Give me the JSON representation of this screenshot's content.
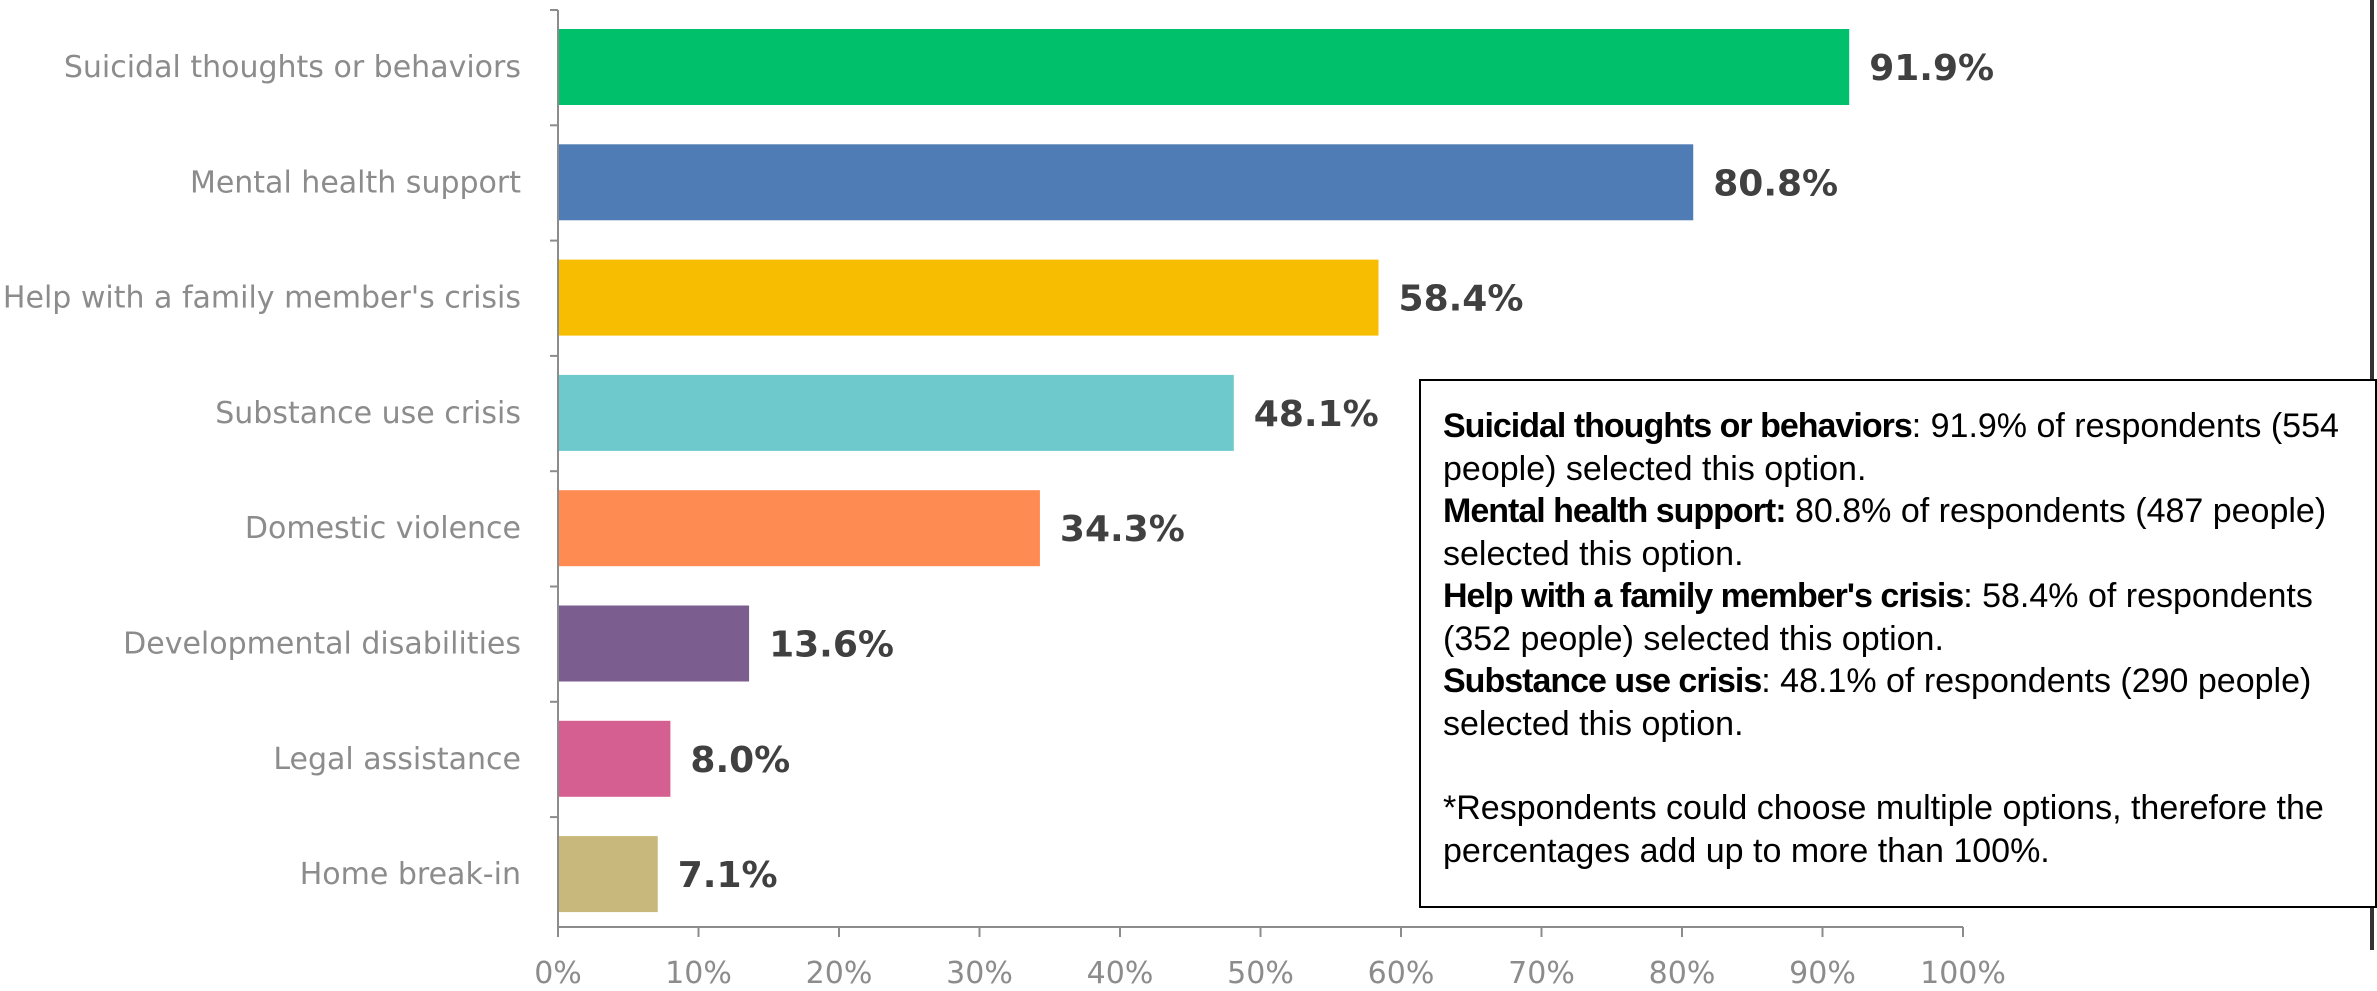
{
  "chart_data": {
    "type": "bar",
    "orientation": "horizontal",
    "categories": [
      "Suicidal thoughts or behaviors",
      "Mental health support",
      "Help with a family member's crisis",
      "Substance use crisis",
      "Domestic violence",
      "Developmental disabilities",
      "Legal assistance",
      "Home break-in"
    ],
    "values": [
      91.9,
      80.8,
      58.4,
      48.1,
      34.3,
      13.6,
      8.0,
      7.1
    ],
    "data_labels": [
      "91.9%",
      "80.8%",
      "58.4%",
      "48.1%",
      "34.3%",
      "13.6%",
      "8.0%",
      "7.1%"
    ],
    "colors": [
      "#00c06b",
      "#4f7cb5",
      "#f7bd00",
      "#6dc9cc",
      "#fe8b52",
      "#7b5e8f",
      "#d55f91",
      "#c9b87c"
    ],
    "x_ticks": [
      "0%",
      "10%",
      "20%",
      "30%",
      "40%",
      "50%",
      "60%",
      "70%",
      "80%",
      "90%",
      "100%"
    ],
    "xlim": [
      0,
      100
    ],
    "title": "",
    "xlabel": "",
    "ylabel": "",
    "grid": false
  },
  "note": {
    "items": [
      {
        "bold": "Suicidal thoughts or behaviors",
        "text": ": 91.9% of respondents (554 people) selected this option."
      },
      {
        "bold": "Mental health support:",
        "text": " 80.8% of respondents (487 people) selected this option."
      },
      {
        "bold": "Help with a family member's crisis",
        "text": ": 58.4% of respondents (352 people) selected this option."
      },
      {
        "bold": "Substance use crisis",
        "text": ": 48.1% of respondents (290 people) selected this option."
      }
    ],
    "footnote": "*Respondents could choose multiple options, therefore the percentages add up to more than 100%."
  }
}
